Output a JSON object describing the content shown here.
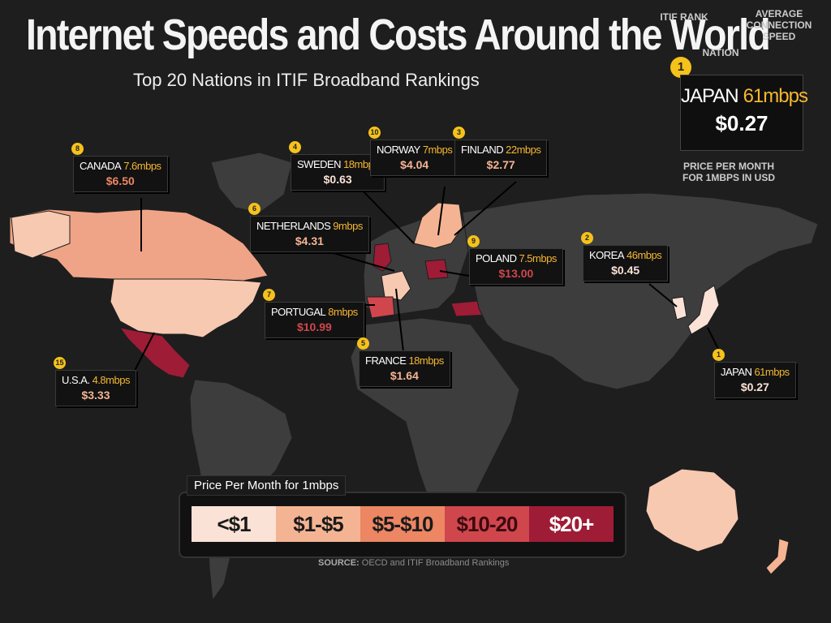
{
  "header": {
    "title": "Internet Speeds and Costs Around the World",
    "subtitle": "Top 20 Nations in ITIF Broadband Rankings"
  },
  "key": {
    "rank_label": "ITIF RANK",
    "speed_label": "AVERAGE CONNECTION SPEED",
    "nation_label": "NATION",
    "price_label": "PRICE PER MONTH FOR 1MBPS IN USD",
    "example": {
      "rank": "1",
      "country": "JAPAN",
      "speed": "61mbps",
      "price": "$0.27"
    }
  },
  "legend": {
    "title": "Price Per Month for 1mbps",
    "bins": [
      "<$1",
      "$1-$5",
      "$5-$10",
      "$10-20",
      "$20+"
    ],
    "colors": [
      "#fbe2d6",
      "#f4b493",
      "#ec8663",
      "#d0464d",
      "#9e1c36"
    ],
    "text_colors": [
      "#1a1a1a",
      "#1a1a1a",
      "#1a1a1a",
      "#3a0a10",
      "#ffffff"
    ]
  },
  "source": {
    "label": "SOURCE:",
    "text": "OECD and ITIF Broadband Rankings"
  },
  "chart_data": {
    "type": "map",
    "title": "Internet Speeds and Costs Around the World",
    "subtitle": "Top 20 Nations in ITIF Broadband Rankings",
    "countries": [
      {
        "rank": "8",
        "name": "CANADA",
        "speed": "7.6mbps",
        "price": "$6.50",
        "price_value": 6.5,
        "bin": 2
      },
      {
        "rank": "4",
        "name": "SWEDEN",
        "speed": "18mbps",
        "price": "$0.63",
        "price_value": 0.63,
        "bin": 0
      },
      {
        "rank": "10",
        "name": "NORWAY",
        "speed": "7mbps",
        "price": "$4.04",
        "price_value": 4.04,
        "bin": 1
      },
      {
        "rank": "3",
        "name": "FINLAND",
        "speed": "22mbps",
        "price": "$2.77",
        "price_value": 2.77,
        "bin": 1
      },
      {
        "rank": "6",
        "name": "NETHERLANDS",
        "speed": "9mbps",
        "price": "$4.31",
        "price_value": 4.31,
        "bin": 1
      },
      {
        "rank": "9",
        "name": "POLAND",
        "speed": "7.5mbps",
        "price": "$13.00",
        "price_value": 13.0,
        "bin": 3
      },
      {
        "rank": "2",
        "name": "KOREA",
        "speed": "46mbps",
        "price": "$0.45",
        "price_value": 0.45,
        "bin": 0
      },
      {
        "rank": "7",
        "name": "PORTUGAL",
        "speed": "8mbps",
        "price": "$10.99",
        "price_value": 10.99,
        "bin": 3
      },
      {
        "rank": "5",
        "name": "FRANCE",
        "speed": "18mbps",
        "price": "$1.64",
        "price_value": 1.64,
        "bin": 1
      },
      {
        "rank": "15",
        "name": "U.S.A.",
        "speed": "4.8mbps",
        "price": "$3.33",
        "price_value": 3.33,
        "bin": 1
      },
      {
        "rank": "1",
        "name": "JAPAN",
        "speed": "61mbps",
        "price": "$0.27",
        "price_value": 0.27,
        "bin": 0
      }
    ]
  }
}
